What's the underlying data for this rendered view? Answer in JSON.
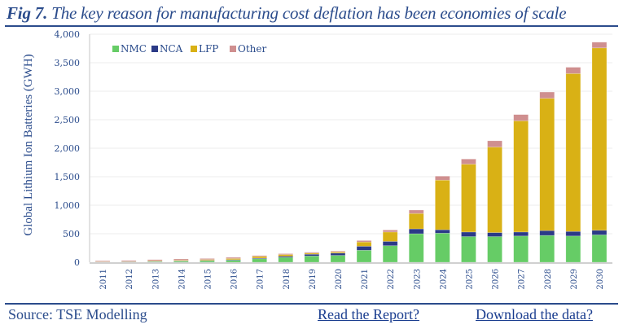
{
  "header": {
    "fig_label": "Fig 7.",
    "title": "The key reason for manufacturing cost deflation has been economies of scale"
  },
  "footer": {
    "source": "Source: TSE Modelling",
    "read_report_link": "Read the Report?",
    "download_link": "Download the data?"
  },
  "chart_data": {
    "type": "bar",
    "stacked": true,
    "title": "The key reason for manufacturing cost deflation has been economies of scale",
    "xlabel": "",
    "ylabel": "Global Lithium Ion Batteries (GWH)",
    "ylim": [
      0,
      4000
    ],
    "yticks": [
      0,
      500,
      1000,
      1500,
      2000,
      2500,
      3000,
      3500,
      4000
    ],
    "ytick_labels": [
      "0",
      "500",
      "1,000",
      "1,500",
      "2,000",
      "2,500",
      "3,000",
      "3,500",
      "4,000"
    ],
    "grid": true,
    "legend_position": "top-left",
    "categories": [
      "2011",
      "2012",
      "2013",
      "2014",
      "2015",
      "2016",
      "2017",
      "2018",
      "2019",
      "2020",
      "2021",
      "2022",
      "2023",
      "2024",
      "2025",
      "2026",
      "2027",
      "2028",
      "2029",
      "2030"
    ],
    "series": [
      {
        "name": "NMC",
        "color": "#66cc66",
        "values": [
          3,
          5,
          10,
          18,
          25,
          35,
          60,
          85,
          110,
          120,
          210,
          290,
          500,
          510,
          450,
          450,
          460,
          470,
          460,
          480
        ]
      },
      {
        "name": "NCA",
        "color": "#2b3a87",
        "values": [
          2,
          3,
          5,
          7,
          8,
          10,
          12,
          20,
          30,
          40,
          70,
          75,
          85,
          60,
          80,
          70,
          70,
          85,
          80,
          80
        ]
      },
      {
        "name": "LFP",
        "color": "#d9b115",
        "values": [
          5,
          5,
          10,
          12,
          15,
          20,
          30,
          30,
          20,
          20,
          75,
          165,
          270,
          870,
          1190,
          1500,
          1950,
          2320,
          2770,
          3200
        ]
      },
      {
        "name": "Other",
        "color": "#cf8f8f",
        "values": [
          15,
          17,
          20,
          20,
          17,
          20,
          15,
          15,
          15,
          15,
          25,
          35,
          60,
          70,
          90,
          110,
          110,
          110,
          110,
          100
        ]
      }
    ]
  }
}
